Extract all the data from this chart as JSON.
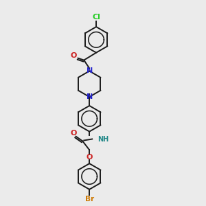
{
  "bg_color": "#ebebeb",
  "bond_color": "#1a1a1a",
  "atom_colors": {
    "N": "#2222cc",
    "O": "#cc2222",
    "Cl": "#22cc22",
    "Br": "#cc7700",
    "NH": "#228888"
  },
  "figure_size": [
    3.0,
    3.0
  ],
  "dpi": 100,
  "lw": 1.4,
  "ring_r": 19
}
